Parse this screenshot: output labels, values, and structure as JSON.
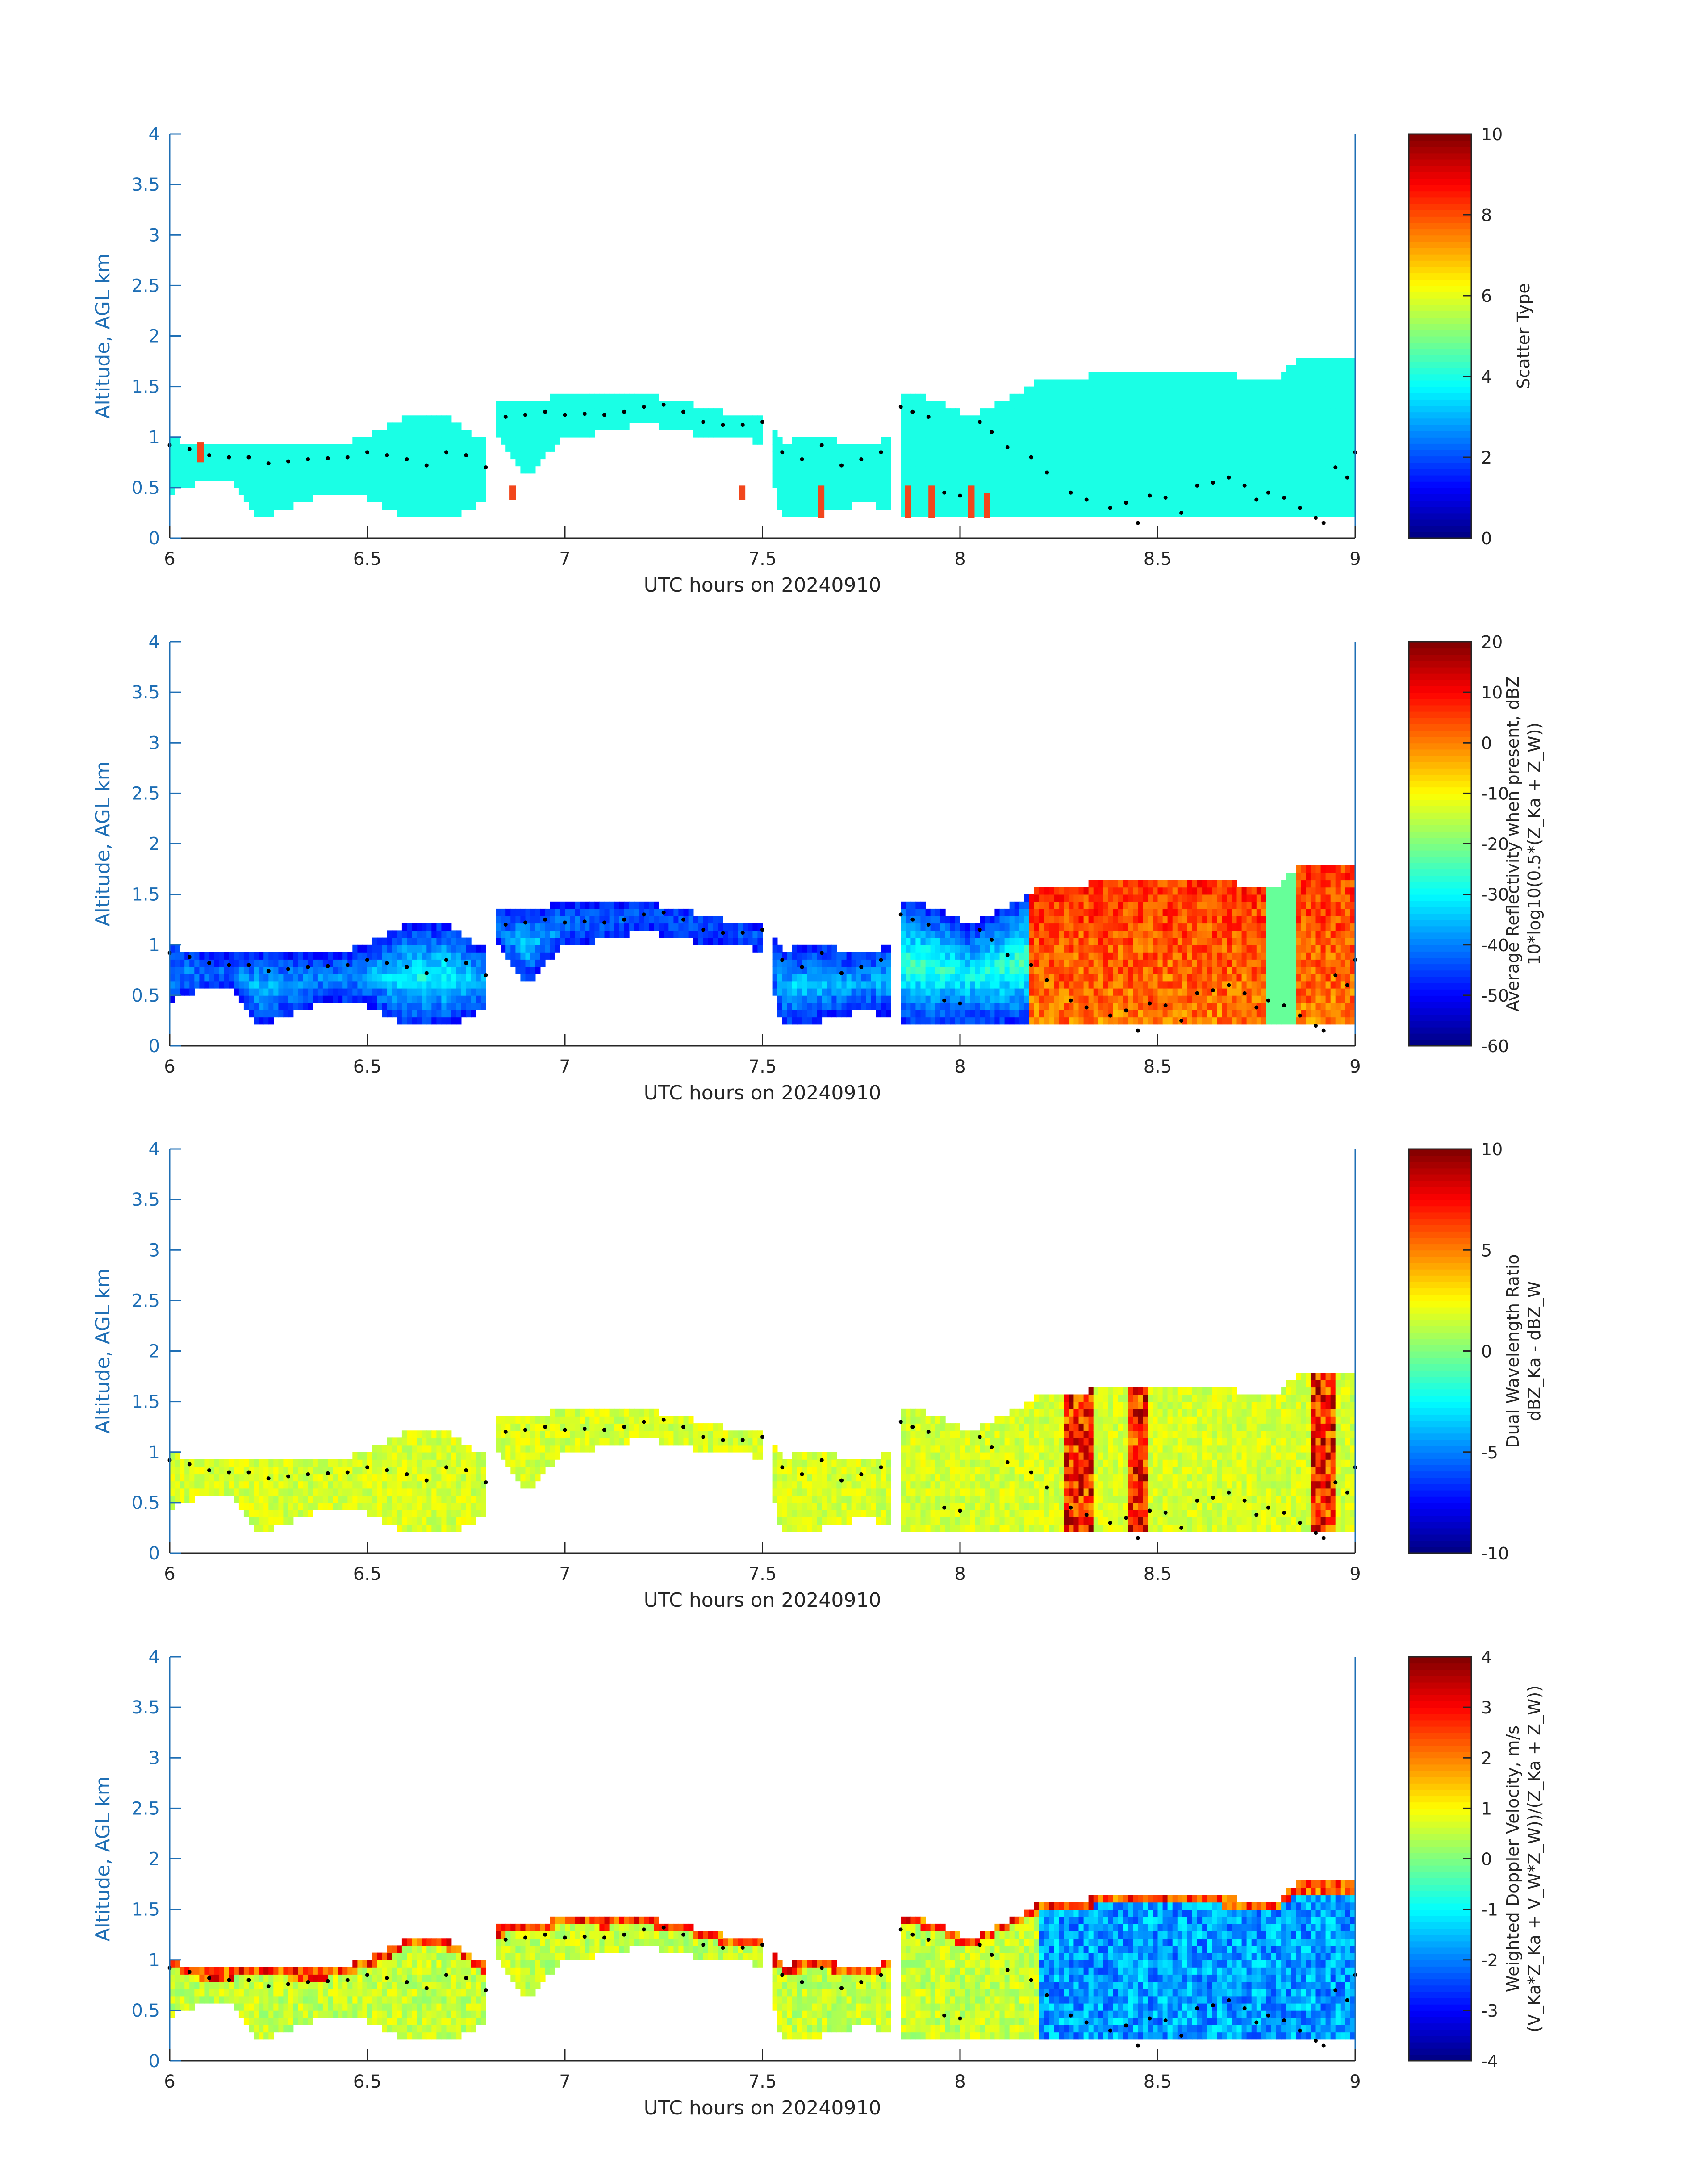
{
  "chart_data": [
    {
      "type": "heatmap",
      "xlabel": "UTC hours on 20240910",
      "ylabel": "Altitude, AGL km",
      "xlim": [
        6,
        9
      ],
      "ylim": [
        0,
        4
      ],
      "xticks": [
        "6",
        "6.5",
        "7",
        "7.5",
        "8",
        "8.5",
        "9"
      ],
      "yticks": [
        "0",
        "0.5",
        "1",
        "1.5",
        "2",
        "2.5",
        "3",
        "3.5",
        "4"
      ],
      "colorbar": {
        "lines": [
          "Scatter Type"
        ],
        "range": [
          0,
          10
        ],
        "ticks": [
          "0",
          "2",
          "4",
          "6",
          "8",
          "10"
        ]
      },
      "color_mode": "type",
      "colormap": "jet",
      "axis_color": "#1f6fb5"
    },
    {
      "type": "heatmap",
      "xlabel": "UTC hours on 20240910",
      "ylabel": "Altitude, AGL km",
      "xlim": [
        6,
        9
      ],
      "ylim": [
        0,
        4
      ],
      "xticks": [
        "6",
        "6.5",
        "7",
        "7.5",
        "8",
        "8.5",
        "9"
      ],
      "yticks": [
        "0",
        "0.5",
        "1",
        "1.5",
        "2",
        "2.5",
        "3",
        "3.5",
        "4"
      ],
      "colorbar": {
        "lines": [
          "Average Reflectivity when present, dBZ",
          "10*log10(0.5*(Z_Ka + Z_W))"
        ],
        "range": [
          -60,
          20
        ],
        "ticks": [
          "-60",
          "-50",
          "-40",
          "-30",
          "-20",
          "-10",
          "0",
          "10",
          "20"
        ]
      },
      "color_mode": "refl",
      "colormap": "jet",
      "axis_color": "#1f6fb5"
    },
    {
      "type": "heatmap",
      "xlabel": "UTC hours on 20240910",
      "ylabel": "Altitude, AGL km",
      "xlim": [
        6,
        9
      ],
      "ylim": [
        0,
        4
      ],
      "xticks": [
        "6",
        "6.5",
        "7",
        "7.5",
        "8",
        "8.5",
        "9"
      ],
      "yticks": [
        "0",
        "0.5",
        "1",
        "1.5",
        "2",
        "2.5",
        "3",
        "3.5",
        "4"
      ],
      "colorbar": {
        "lines": [
          "Dual Wavelength Ratio",
          "dBZ_Ka - dBZ_W"
        ],
        "range": [
          -10,
          10
        ],
        "ticks": [
          "-10",
          "-5",
          "0",
          "5",
          "10"
        ]
      },
      "color_mode": "dwr",
      "colormap": "jet",
      "axis_color": "#1f6fb5"
    },
    {
      "type": "heatmap",
      "xlabel": "UTC hours on 20240910",
      "ylabel": "Altitude, AGL km",
      "xlim": [
        6,
        9
      ],
      "ylim": [
        0,
        4
      ],
      "xticks": [
        "6",
        "6.5",
        "7",
        "7.5",
        "8",
        "8.5",
        "9"
      ],
      "yticks": [
        "0",
        "0.5",
        "1",
        "1.5",
        "2",
        "2.5",
        "3",
        "3.5",
        "4"
      ],
      "colorbar": {
        "lines": [
          "Weighted Doppler Velocity, m/s",
          "(V_Ka*Z_Ka + V_W*Z_W))/(Z_Ka + Z_W))"
        ],
        "range": [
          -4,
          4
        ],
        "ticks": [
          "-4",
          "-3",
          "-2",
          "-1",
          "0",
          "1",
          "2",
          "3",
          "4"
        ]
      },
      "color_mode": "vel",
      "colormap": "jet",
      "axis_color": "#1f6fb5"
    }
  ],
  "cloud_layers": [
    [
      6.0,
      0.45,
      1.0
    ],
    [
      6.08,
      0.55,
      0.9
    ],
    [
      6.16,
      0.55,
      0.9
    ],
    [
      6.22,
      0.2,
      0.95
    ],
    [
      6.3,
      0.3,
      0.9
    ],
    [
      6.4,
      0.45,
      0.9
    ],
    [
      6.5,
      0.4,
      1.0
    ],
    [
      6.6,
      0.2,
      1.2
    ],
    [
      6.7,
      0.2,
      1.2
    ],
    [
      6.8,
      0.35,
      0.95
    ],
    [
      6.82,
      1.05,
      1.32
    ],
    [
      6.9,
      0.6,
      1.35
    ],
    [
      7.0,
      1.0,
      1.42
    ],
    [
      7.1,
      1.05,
      1.4
    ],
    [
      7.2,
      1.15,
      1.42
    ],
    [
      7.3,
      1.05,
      1.35
    ],
    [
      7.4,
      1.0,
      1.25
    ],
    [
      7.5,
      0.95,
      1.2
    ],
    [
      7.55,
      0.2,
      0.95
    ],
    [
      7.65,
      0.25,
      1.0
    ],
    [
      7.75,
      0.35,
      0.9
    ],
    [
      7.82,
      0.3,
      1.0
    ],
    [
      7.85,
      0.2,
      1.45
    ],
    [
      7.95,
      0.2,
      1.35
    ],
    [
      8.02,
      0.2,
      1.2
    ],
    [
      8.1,
      0.2,
      1.35
    ],
    [
      8.2,
      0.2,
      1.55
    ],
    [
      8.35,
      0.2,
      1.62
    ],
    [
      8.5,
      0.2,
      1.65
    ],
    [
      8.65,
      0.2,
      1.62
    ],
    [
      8.8,
      0.2,
      1.58
    ],
    [
      8.85,
      0.2,
      1.75
    ],
    [
      9.0,
      0.2,
      1.75
    ]
  ],
  "cloud_top_points": [
    [
      6.0,
      0.92
    ],
    [
      6.05,
      0.88
    ],
    [
      6.1,
      0.82
    ],
    [
      6.15,
      0.8
    ],
    [
      6.2,
      0.8
    ],
    [
      6.25,
      0.74
    ],
    [
      6.3,
      0.76
    ],
    [
      6.35,
      0.78
    ],
    [
      6.4,
      0.79
    ],
    [
      6.45,
      0.8
    ],
    [
      6.5,
      0.85
    ],
    [
      6.55,
      0.82
    ],
    [
      6.6,
      0.78
    ],
    [
      6.65,
      0.72
    ],
    [
      6.7,
      0.85
    ],
    [
      6.75,
      0.82
    ],
    [
      6.8,
      0.7
    ],
    [
      6.85,
      1.2
    ],
    [
      6.9,
      1.22
    ],
    [
      6.95,
      1.25
    ],
    [
      7.0,
      1.22
    ],
    [
      7.05,
      1.23
    ],
    [
      7.1,
      1.22
    ],
    [
      7.15,
      1.25
    ],
    [
      7.2,
      1.3
    ],
    [
      7.25,
      1.32
    ],
    [
      7.3,
      1.25
    ],
    [
      7.35,
      1.15
    ],
    [
      7.4,
      1.12
    ],
    [
      7.45,
      1.12
    ],
    [
      7.5,
      1.15
    ],
    [
      7.55,
      0.85
    ],
    [
      7.6,
      0.78
    ],
    [
      7.65,
      0.92
    ],
    [
      7.7,
      0.72
    ],
    [
      7.75,
      0.78
    ],
    [
      7.8,
      0.85
    ],
    [
      7.85,
      1.3
    ],
    [
      7.88,
      1.25
    ],
    [
      7.92,
      1.2
    ],
    [
      7.96,
      0.45
    ],
    [
      8.0,
      0.42
    ],
    [
      8.05,
      1.15
    ],
    [
      8.08,
      1.05
    ],
    [
      8.12,
      0.9
    ],
    [
      8.18,
      0.8
    ],
    [
      8.22,
      0.65
    ],
    [
      8.28,
      0.45
    ],
    [
      8.32,
      0.38
    ],
    [
      8.38,
      0.3
    ],
    [
      8.42,
      0.35
    ],
    [
      8.45,
      0.15
    ],
    [
      8.48,
      0.42
    ],
    [
      8.52,
      0.4
    ],
    [
      8.56,
      0.25
    ],
    [
      8.6,
      0.52
    ],
    [
      8.64,
      0.55
    ],
    [
      8.68,
      0.6
    ],
    [
      8.72,
      0.52
    ],
    [
      8.75,
      0.38
    ],
    [
      8.78,
      0.45
    ],
    [
      8.82,
      0.4
    ],
    [
      8.86,
      0.3
    ],
    [
      8.9,
      0.2
    ],
    [
      8.92,
      0.15
    ],
    [
      8.95,
      0.7
    ],
    [
      8.98,
      0.6
    ],
    [
      9.0,
      0.85
    ]
  ],
  "scatter_type_patches": [
    [
      6.07,
      0.75,
      0.95
    ],
    [
      6.86,
      0.38,
      0.52
    ],
    [
      7.44,
      0.38,
      0.52
    ],
    [
      7.64,
      0.2,
      0.52
    ],
    [
      7.86,
      0.2,
      0.52
    ],
    [
      7.92,
      0.2,
      0.52
    ],
    [
      8.02,
      0.2,
      0.52
    ],
    [
      8.06,
      0.2,
      0.45
    ]
  ]
}
